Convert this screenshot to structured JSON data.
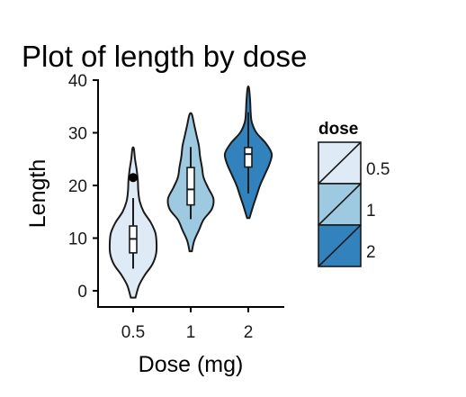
{
  "chart_data": {
    "type": "violin",
    "title": "Plot of length  by dose",
    "xlabel": "Dose (mg)",
    "ylabel": "Length",
    "ylim": [
      -3,
      40
    ],
    "yticks": [
      "0",
      "10",
      "20",
      "30",
      "40"
    ],
    "categories": [
      "0.5",
      "1",
      "2"
    ],
    "series": [
      {
        "category": "0.5",
        "color": "#deebf7",
        "min": 4.2,
        "q1": 7.2,
        "median": 9.85,
        "q3": 12.3,
        "max": 17.6,
        "outliers": [
          21.5
        ],
        "density": [
          [
            -1.3,
            0.1
          ],
          [
            1,
            0.25
          ],
          [
            3,
            0.5
          ],
          [
            5,
            0.82
          ],
          [
            7,
            0.98
          ],
          [
            9,
            1.0
          ],
          [
            11,
            0.95
          ],
          [
            13,
            0.75
          ],
          [
            15,
            0.45
          ],
          [
            17,
            0.28
          ],
          [
            19,
            0.22
          ],
          [
            21,
            0.2
          ],
          [
            23,
            0.15
          ],
          [
            25,
            0.08
          ],
          [
            27,
            0.03
          ]
        ]
      },
      {
        "category": "1",
        "color": "#9ecae1",
        "min": 13.6,
        "q1": 16.3,
        "median": 19.25,
        "q3": 23.4,
        "max": 27.3,
        "outliers": [],
        "density": [
          [
            7.5,
            0.05
          ],
          [
            9.5,
            0.15
          ],
          [
            11.5,
            0.35
          ],
          [
            13.5,
            0.55
          ],
          [
            15.5,
            0.9
          ],
          [
            17.5,
            0.97
          ],
          [
            19.5,
            0.75
          ],
          [
            21.5,
            0.55
          ],
          [
            23.5,
            0.48
          ],
          [
            25.5,
            0.4
          ],
          [
            27.5,
            0.35
          ],
          [
            29.5,
            0.25
          ],
          [
            31.5,
            0.15
          ],
          [
            33.5,
            0.05
          ]
        ]
      },
      {
        "category": "2",
        "color": "#3182bd",
        "min": 18.5,
        "q1": 23.5,
        "median": 25.95,
        "q3": 27.2,
        "max": 33.9,
        "outliers": [],
        "density": [
          [
            13.8,
            0.05
          ],
          [
            16,
            0.2
          ],
          [
            18,
            0.35
          ],
          [
            20,
            0.5
          ],
          [
            22,
            0.7
          ],
          [
            24,
            0.9
          ],
          [
            26,
            1.0
          ],
          [
            28,
            0.75
          ],
          [
            30,
            0.35
          ],
          [
            32,
            0.15
          ],
          [
            34,
            0.1
          ],
          [
            36,
            0.08
          ],
          [
            38.5,
            0.03
          ]
        ]
      }
    ],
    "legend": {
      "title": "dose",
      "entries": [
        "0.5",
        "1",
        "2"
      ],
      "placement": "right"
    },
    "grid": false
  }
}
